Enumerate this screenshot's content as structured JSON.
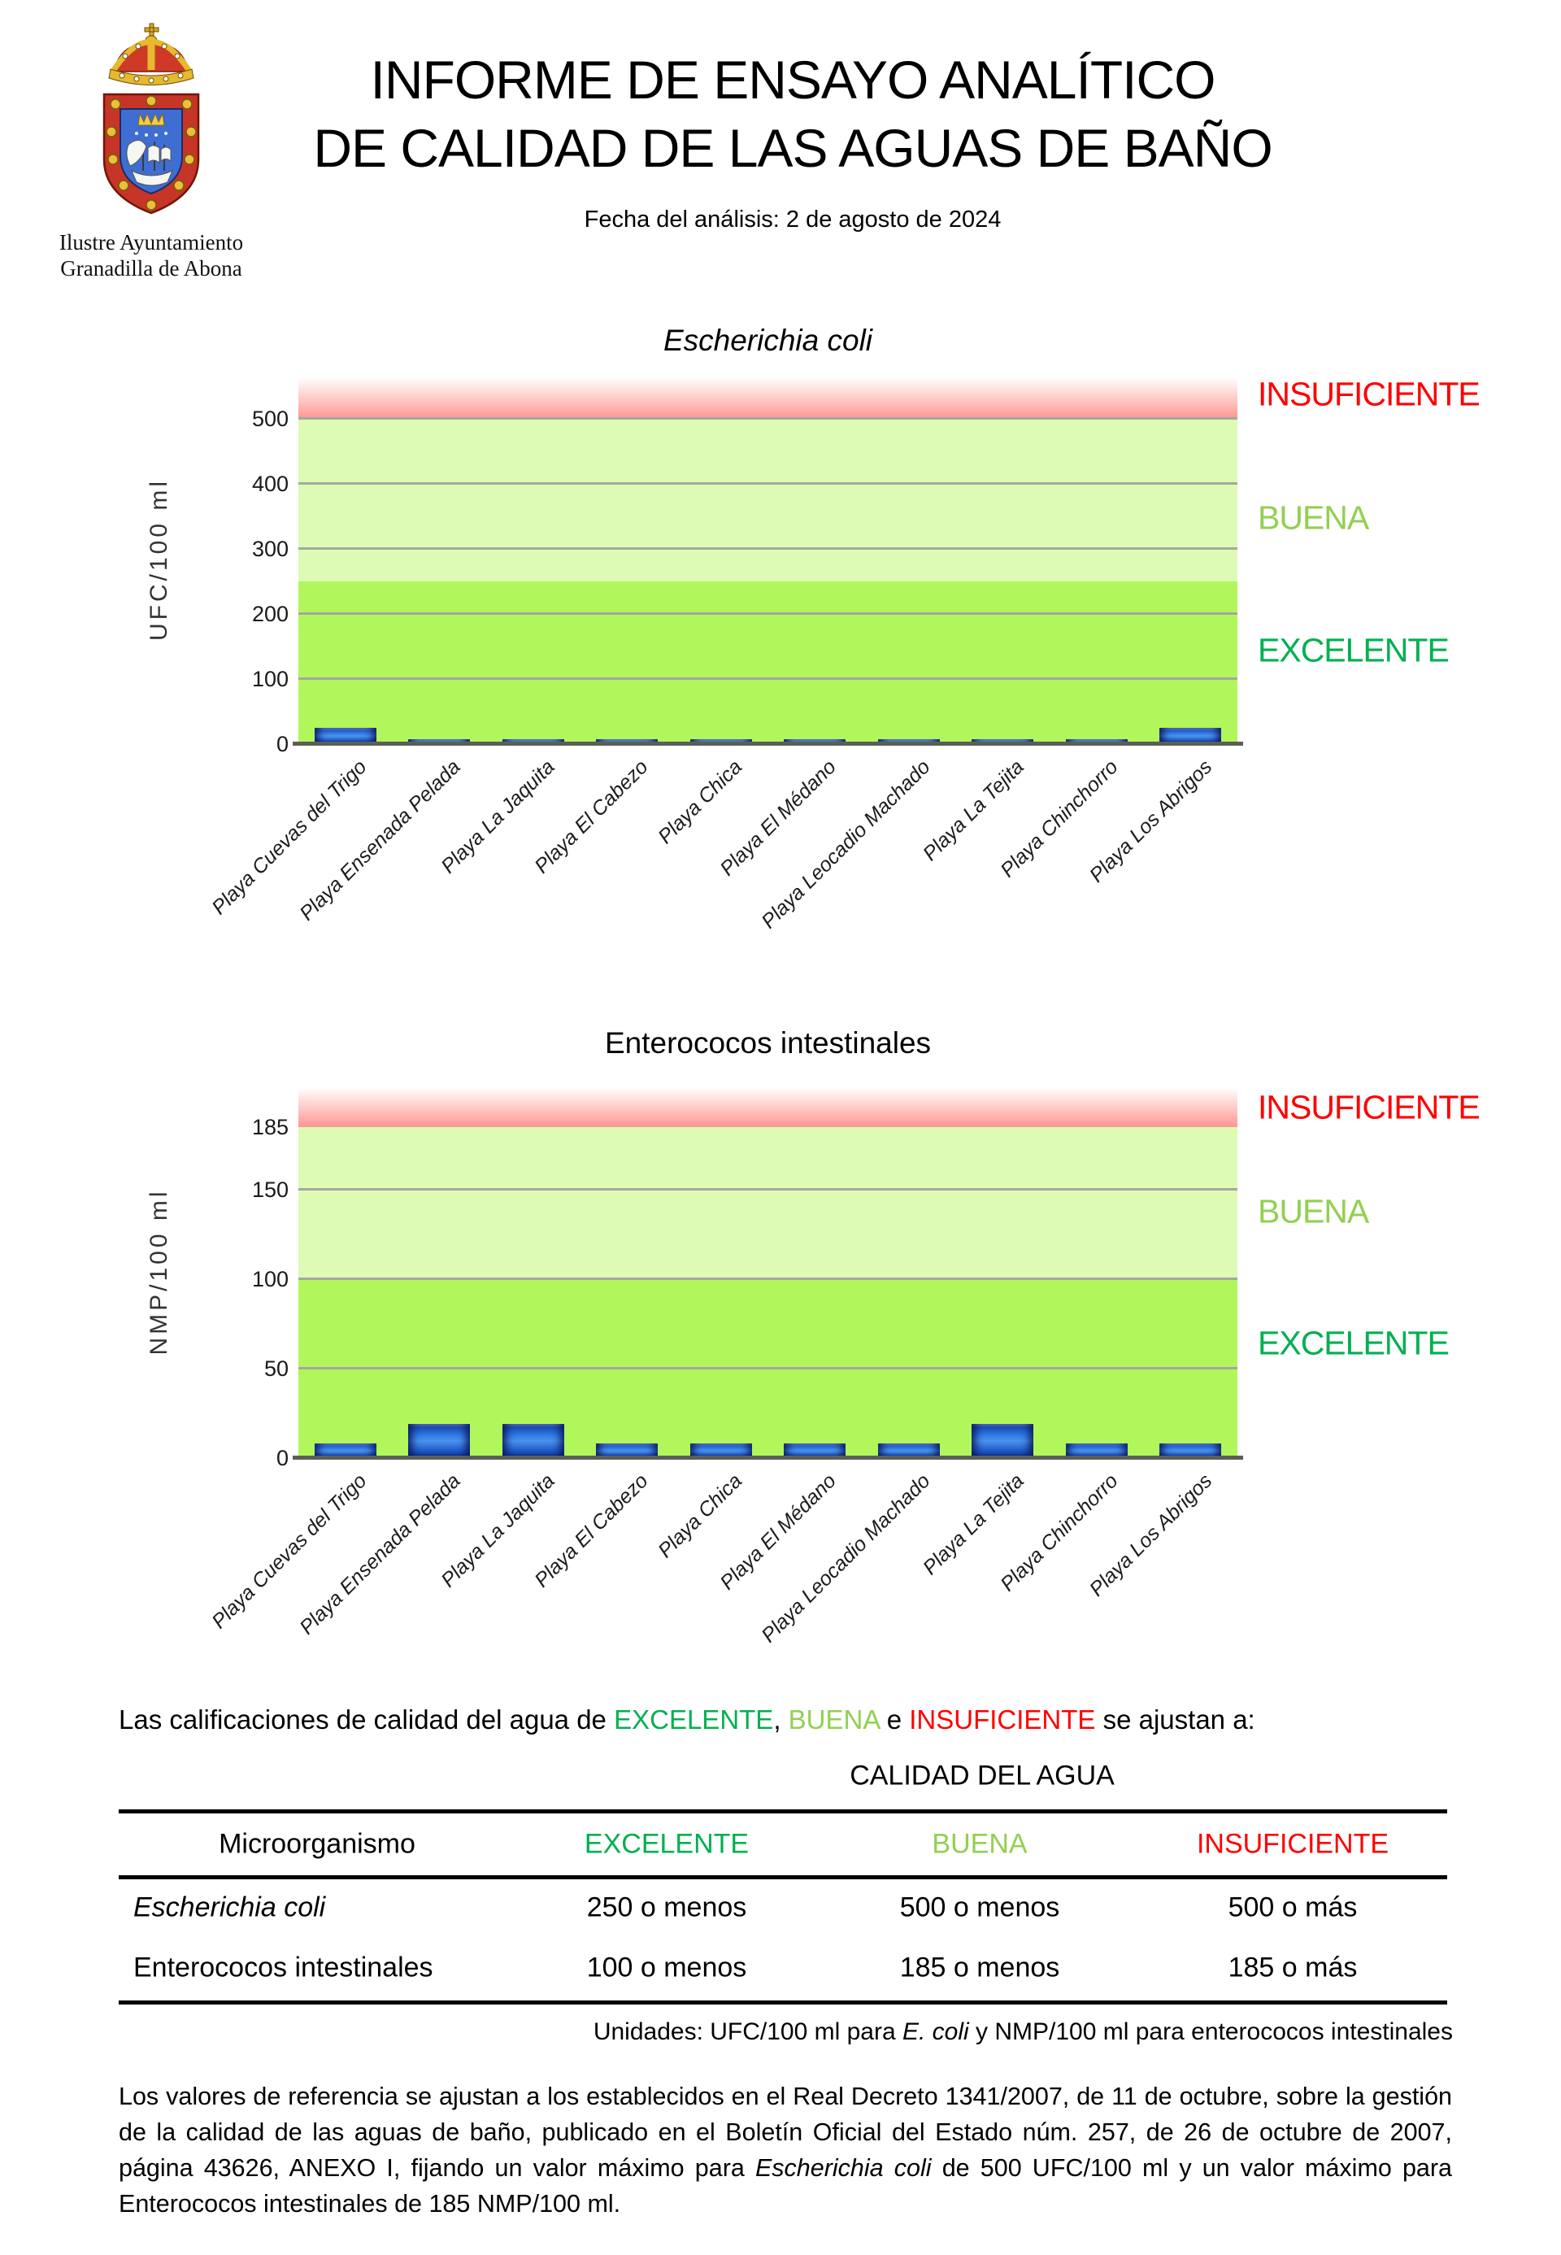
{
  "header": {
    "logo_line1": "Ilustre Ayuntamiento",
    "logo_line2": "Granadilla de Abona",
    "title_line1": "INFORME DE ENSAYO ANALÍTICO",
    "title_line2": "DE CALIDAD DE LAS AGUAS DE BAÑO",
    "subtitle": "Fecha del análisis: 2 de agosto de 2024"
  },
  "zone_labels": {
    "insufficient": "INSUFICIENTE",
    "good": "BUENA",
    "excellent": "EXCELENTE"
  },
  "colors": {
    "excellent_zone": "#b1f75b",
    "good_zone": "#ddfbb4",
    "insufficient_zone_top": "#ffffff",
    "insufficient_zone_bottom": "#ff9593",
    "excellent_label": "#00b050",
    "good_label": "#92d050",
    "insufficient_label": "#ff0000",
    "bar_blue": "#2e79e2",
    "gridline": "#a4a89e",
    "axis_line": "#5a5f58"
  },
  "chart_data": [
    {
      "type": "bar",
      "title": "Escherichia coli",
      "title_italic": true,
      "ylabel": "UFC/100 ml",
      "categories": [
        "Playa Cuevas del Trigo",
        "Playa Ensenada Pelada",
        "Playa La Jaquita",
        "Playa El Cabezo",
        "Playa Chica",
        "Playa El Médano",
        "Playa Leocadio Machado",
        "Playa La Tejita",
        "Playa Chinchorro",
        "Playa Los Abrigos"
      ],
      "values": [
        25,
        8,
        8,
        8,
        8,
        8,
        8,
        8,
        8,
        25
      ],
      "yticks": [
        0,
        100,
        200,
        300,
        400,
        500
      ],
      "gridline_values": [
        100,
        200,
        300,
        400,
        500
      ],
      "ylim": [
        0,
        566
      ],
      "grid": true,
      "legend_position": "right",
      "zones": [
        {
          "label": "EXCELENTE",
          "from": 0,
          "to": 250
        },
        {
          "label": "BUENA",
          "from": 250,
          "to": 500
        },
        {
          "label": "INSUFICIENTE",
          "from": 500,
          "to": 566
        }
      ]
    },
    {
      "type": "bar",
      "title": "Enterococos intestinales",
      "title_italic": false,
      "ylabel": "NMP/100 ml",
      "categories": [
        "Playa Cuevas del Trigo",
        "Playa Ensenada Pelada",
        "Playa La Jaquita",
        "Playa El Cabezo",
        "Playa Chica",
        "Playa El Médano",
        "Playa Leocadio Machado",
        "Playa La Tejita",
        "Playa Chinchorro",
        "Playa Los Abrigos"
      ],
      "values": [
        8,
        19,
        19,
        8,
        8,
        8,
        8,
        19,
        8,
        8
      ],
      "yticks": [
        0,
        50,
        100,
        150,
        185
      ],
      "gridline_values": [
        50,
        100,
        150
      ],
      "ylim": [
        0,
        208
      ],
      "grid": true,
      "legend_position": "right",
      "zones": [
        {
          "label": "EXCELENTE",
          "from": 0,
          "to": 100
        },
        {
          "label": "BUENA",
          "from": 100,
          "to": 185
        },
        {
          "label": "INSUFICIENTE",
          "from": 185,
          "to": 208
        }
      ]
    }
  ],
  "criteria": {
    "prefix": "Las calificaciones de calidad del agua de ",
    "excellent": "EXCELENTE",
    "sep1": ", ",
    "good": "BUENA",
    "sep2": " e ",
    "insufficient": "INSUFICIENTE",
    "suffix": " se ajustan a:"
  },
  "table": {
    "caption": "CALIDAD DEL AGUA",
    "headers": [
      "Microorganismo",
      "EXCELENTE",
      "BUENA",
      "INSUFICIENTE"
    ],
    "rows": [
      {
        "name": "Escherichia coli",
        "excellent": "250 o menos",
        "good": "500 o menos",
        "insufficient": "500 o más"
      },
      {
        "name": "Enterococos intestinales",
        "excellent": "100 o menos",
        "good": "185 o menos",
        "insufficient": "185 o más"
      }
    ]
  },
  "units_note": {
    "prefix": "Unidades: UFC/100 ml para ",
    "italic": "E. coli",
    "suffix": " y NMP/100 ml para enterococos intestinales"
  },
  "footer": {
    "p1": "Los valores de referencia se ajustan a los establecidos en el Real Decreto 1341/2007, de 11 de octubre, sobre la gestión de la calidad de las aguas de baño, publicado en el Boletín Oficial del Estado núm. 257, de 26 de octubre de 2007, página 43626, ANEXO I, fijando un valor máximo para ",
    "italic1": "Escherichia coli",
    "p2": " de 500 UFC/100 ml y un valor máximo para Enterococos intestinales de 185 NMP/100 ml."
  }
}
